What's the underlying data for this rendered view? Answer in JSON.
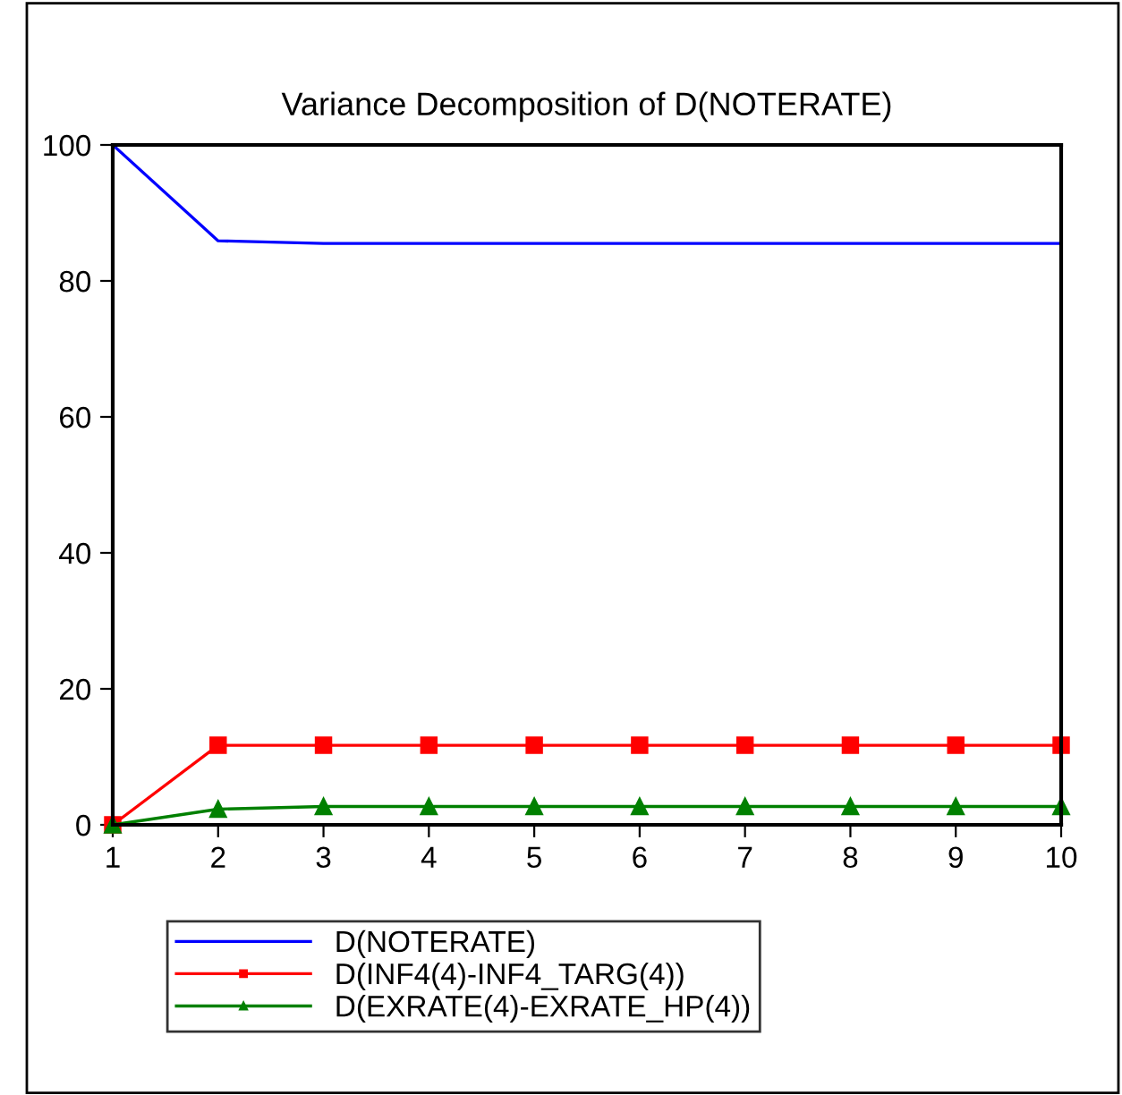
{
  "chart_data": {
    "type": "line",
    "title": "Variance Decomposition of D(NOTERATE)",
    "x": [
      1,
      2,
      3,
      4,
      5,
      6,
      7,
      8,
      9,
      10
    ],
    "series": [
      {
        "name": "D(NOTERATE)",
        "color": "#0000ff",
        "marker": "none",
        "values": [
          100,
          85.9,
          85.5,
          85.5,
          85.5,
          85.5,
          85.5,
          85.5,
          85.5,
          85.5
        ]
      },
      {
        "name": "D(INF4(4)-INF4_TARG(4))",
        "color": "#ff0000",
        "marker": "square",
        "values": [
          0,
          11.7,
          11.7,
          11.7,
          11.7,
          11.7,
          11.7,
          11.7,
          11.7,
          11.7
        ]
      },
      {
        "name": "D(EXRATE(4)-EXRATE_HP(4))",
        "color": "#008000",
        "marker": "triangle",
        "values": [
          0,
          2.3,
          2.7,
          2.7,
          2.7,
          2.7,
          2.7,
          2.7,
          2.7,
          2.7
        ]
      }
    ],
    "xlim": [
      1,
      10
    ],
    "xticks": [
      1,
      2,
      3,
      4,
      5,
      6,
      7,
      8,
      9,
      10
    ],
    "ylim": [
      0,
      100
    ],
    "yticks": [
      0,
      20,
      40,
      60,
      80,
      100
    ],
    "grid": false,
    "legend": "bottom",
    "line_style": "solid"
  }
}
